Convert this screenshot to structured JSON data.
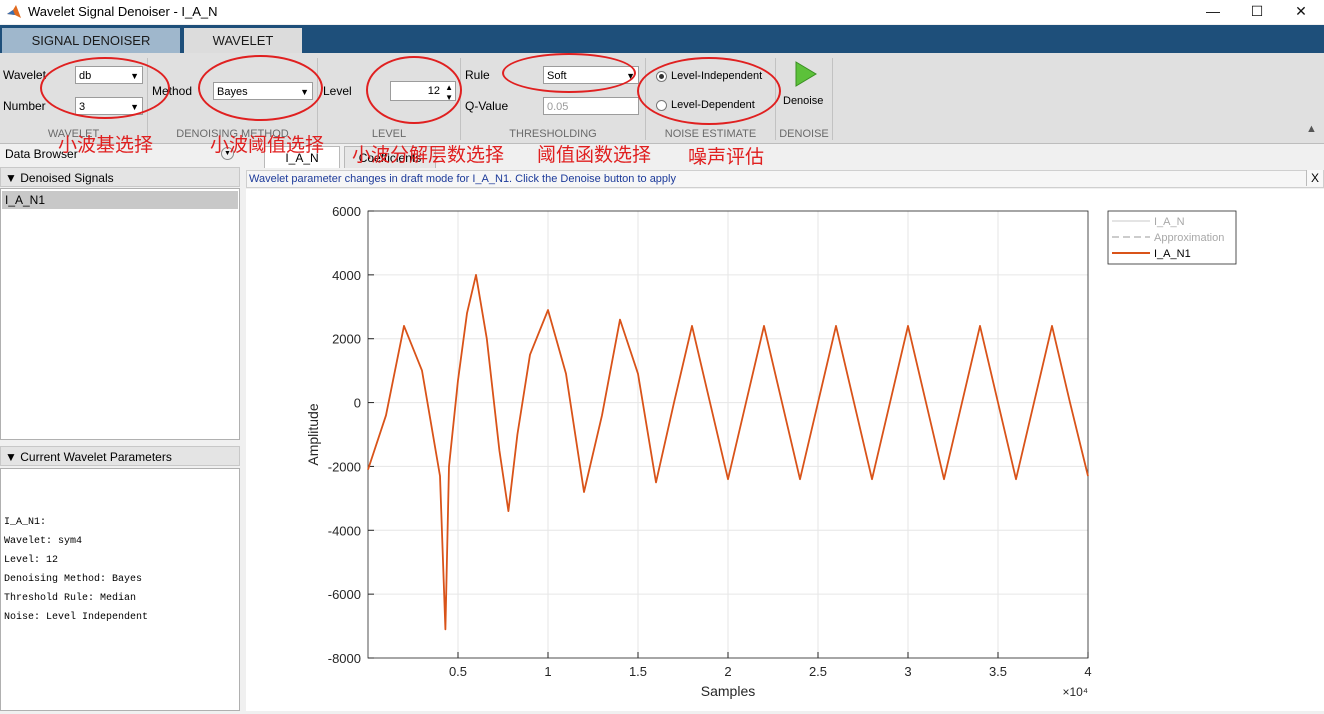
{
  "window": {
    "title": "Wavelet Signal Denoiser - I_A_N",
    "minimize": "—",
    "maximize": "☐",
    "close": "✕"
  },
  "ribbon_tabs": [
    "SIGNAL DENOISER",
    "WAVELET"
  ],
  "ribbon": {
    "wavelet_label": "Wavelet",
    "wavelet_value": "db",
    "number_label": "Number",
    "number_value": "3",
    "method_label": "Method",
    "method_value": "Bayes",
    "level_label": "Level",
    "level_value": "12",
    "rule_label": "Rule",
    "rule_value": "Soft",
    "qvalue_label": "Q-Value",
    "qvalue_value": "0.05",
    "noise_independent": "Level-Independent",
    "noise_dependent": "Level-Dependent",
    "denoise_label": "Denoise",
    "sections": [
      "WAVELET",
      "DENOISING METHOD",
      "LEVEL",
      "THRESHOLDING",
      "NOISE ESTIMATE",
      "DENOISE"
    ]
  },
  "annotations": [
    "小波基选择",
    "小波阈值选择",
    "小波分解层数选择",
    "阈值函数选择",
    "噪声评估"
  ],
  "left": {
    "data_browser": "Data Browser",
    "denoised_header": "Denoised Signals",
    "signals": [
      "I_A_N1"
    ],
    "params_header": "Current Wavelet Parameters",
    "params": [
      "I_A_N1:",
      "",
      "Wavelet: sym4",
      "Level: 12",
      "Denoising Method: Bayes",
      "Threshold Rule: Median",
      "Noise: Level Independent"
    ]
  },
  "doc_tabs": [
    "I_A_N",
    "Coefficients"
  ],
  "info_text": "Wavelet parameter changes in draft mode for I_A_N1. Click the Denoise button to apply",
  "info_close": "X",
  "colors": {
    "series": "#d95319",
    "ribbon_tab_bar": "#1e4f7a",
    "annotation": "#e02020"
  },
  "chart_data": {
    "type": "line",
    "xlabel": "Samples",
    "ylabel": "Amplitude",
    "x_exponent_label": "×10⁴",
    "xlim": [
      0,
      40000
    ],
    "ylim": [
      -8000,
      6000
    ],
    "xticks": [
      5000,
      10000,
      15000,
      20000,
      25000,
      30000,
      35000,
      40000
    ],
    "xtick_labels": [
      "0.5",
      "1",
      "1.5",
      "2",
      "2.5",
      "3",
      "3.5",
      "4"
    ],
    "yticks": [
      -8000,
      -6000,
      -4000,
      -2000,
      0,
      2000,
      4000,
      6000
    ],
    "ytick_labels": [
      "-8000",
      "-6000",
      "-4000",
      "-2000",
      "0",
      "2000",
      "4000",
      "6000"
    ],
    "grid": true,
    "legend_position": "top-right",
    "legend": [
      {
        "name": "I_A_N",
        "style": "solid",
        "color": "#c8c8c8"
      },
      {
        "name": "Approximation",
        "style": "dashed",
        "color": "#9a9a9a"
      },
      {
        "name": "I_A_N1",
        "style": "solid",
        "color": "#d95319"
      }
    ],
    "series": [
      {
        "name": "I_A_N1",
        "points": [
          [
            0,
            -2100
          ],
          [
            1000,
            -400
          ],
          [
            2000,
            2400
          ],
          [
            3000,
            1000
          ],
          [
            4000,
            -2300
          ],
          [
            4200,
            -5500
          ],
          [
            4300,
            -7100
          ],
          [
            4500,
            -2000
          ],
          [
            5000,
            700
          ],
          [
            5500,
            2800
          ],
          [
            6000,
            4000
          ],
          [
            6600,
            2000
          ],
          [
            7300,
            -1500
          ],
          [
            7800,
            -3400
          ],
          [
            8300,
            -1000
          ],
          [
            9000,
            1500
          ],
          [
            10000,
            2900
          ],
          [
            11000,
            900
          ],
          [
            12000,
            -2800
          ],
          [
            13000,
            -400
          ],
          [
            14000,
            2600
          ],
          [
            15000,
            900
          ],
          [
            16000,
            -2500
          ],
          [
            17000,
            0
          ],
          [
            18000,
            2400
          ],
          [
            19000,
            0
          ],
          [
            20000,
            -2400
          ],
          [
            21000,
            0
          ],
          [
            22000,
            2400
          ],
          [
            23000,
            0
          ],
          [
            24000,
            -2400
          ],
          [
            25000,
            0
          ],
          [
            26000,
            2400
          ],
          [
            27000,
            0
          ],
          [
            28000,
            -2400
          ],
          [
            29000,
            0
          ],
          [
            30000,
            2400
          ],
          [
            31000,
            0
          ],
          [
            32000,
            -2400
          ],
          [
            33000,
            0
          ],
          [
            34000,
            2400
          ],
          [
            35000,
            0
          ],
          [
            36000,
            -2400
          ],
          [
            37000,
            0
          ],
          [
            38000,
            2400
          ],
          [
            39000,
            0
          ],
          [
            40000,
            -2300
          ]
        ]
      }
    ]
  }
}
